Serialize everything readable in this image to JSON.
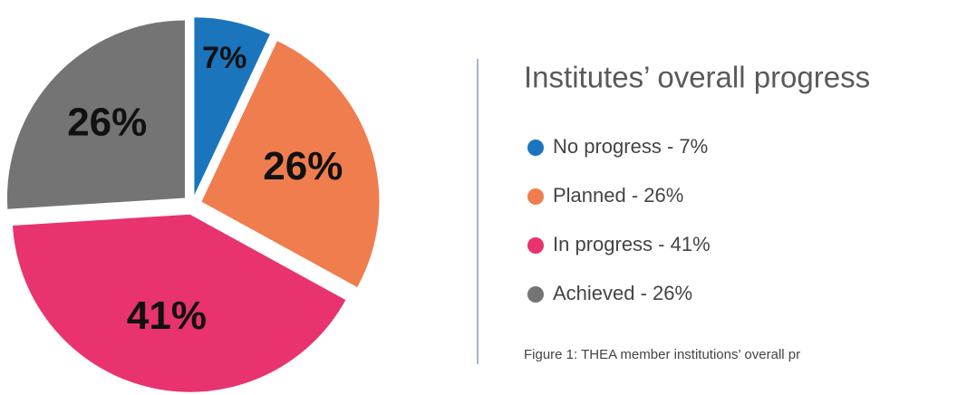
{
  "chart_data": {
    "type": "pie",
    "title": "Institutes’ overall progress",
    "caption": "Figure 1: THEA member institutions’ overall pr",
    "categories": [
      "No progress - 7%",
      "Planned - 26%",
      "In progress - 41%",
      "Achieved - 26%"
    ],
    "values": [
      7,
      26,
      41,
      26
    ],
    "value_labels": [
      "7%",
      "26%",
      "41%",
      "26%"
    ],
    "colors": [
      "#1b75bc",
      "#ef7d4e",
      "#e8336e",
      "#747474"
    ],
    "legend": "right"
  }
}
